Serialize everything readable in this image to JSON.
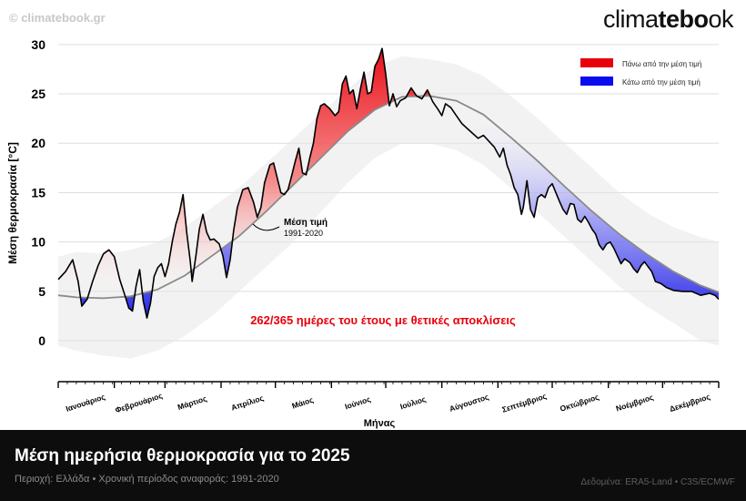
{
  "header": {
    "watermark": "© climatebook.gr",
    "brand_light": "clima",
    "brand_bold": "tebo",
    "brand_tail": "ok"
  },
  "footer": {
    "title": "Μέση ημερήσια θερμοκρασία για το 2025",
    "subtitle": "Περιοχή: Ελλάδα • Χρονική περίοδος αναφοράς: 1991-2020",
    "source": "Δεδομένα: ERA5-Land • C3S/ECMWF"
  },
  "chart_data": {
    "type": "area",
    "ylabel": "Μέση θερμοκρασία [°C]",
    "xlabel": "Μήνας",
    "ylim": [
      -3.5,
      31
    ],
    "xlim": [
      0,
      365
    ],
    "yticks": [
      0,
      5,
      10,
      15,
      20,
      25,
      30
    ],
    "grid": "horizontal",
    "categories": [
      "Ιανουάριος",
      "Φεβρουάριος",
      "Μάρτιος",
      "Απρίλιος",
      "Μάιος",
      "Ιούνιος",
      "Ιούλιος",
      "Αύγουστος",
      "Σεπτέμβριος",
      "Οκτώβριος",
      "Νοέμβριος",
      "Δεκέμβριος"
    ],
    "month_start_days": [
      0,
      31,
      59,
      90,
      120,
      151,
      181,
      212,
      243,
      273,
      304,
      334,
      365
    ],
    "legend": {
      "position": "top-right",
      "items": [
        {
          "label": "Πάνω από την μέση τιμή",
          "color": "#e8000b"
        },
        {
          "label": "Κάτω από την μέση τιμή",
          "color": "#0b0bf0"
        }
      ]
    },
    "mean_label": "Μέση τιμή",
    "mean_period": "1991-2020",
    "annotation": "262/365 ημέρες του έτους με θετικές αποκλίσεις",
    "colors": {
      "above": "#e8000b",
      "below": "#1414e6",
      "band": "#d9d9d9",
      "mean": "#8a8a8a"
    },
    "mean_1991_2020": [
      [
        0,
        4.6
      ],
      [
        10,
        4.4
      ],
      [
        25,
        4.3
      ],
      [
        40,
        4.5
      ],
      [
        55,
        5.2
      ],
      [
        70,
        6.6
      ],
      [
        85,
        8.6
      ],
      [
        100,
        10.6
      ],
      [
        115,
        13.1
      ],
      [
        130,
        15.8
      ],
      [
        145,
        18.5
      ],
      [
        160,
        21.2
      ],
      [
        175,
        23.4
      ],
      [
        190,
        24.7
      ],
      [
        205,
        24.8
      ],
      [
        220,
        24.3
      ],
      [
        235,
        22.9
      ],
      [
        250,
        20.6
      ],
      [
        265,
        18.2
      ],
      [
        280,
        15.6
      ],
      [
        295,
        13.1
      ],
      [
        310,
        10.8
      ],
      [
        325,
        8.8
      ],
      [
        340,
        7.0
      ],
      [
        355,
        5.6
      ],
      [
        365,
        4.9
      ]
    ],
    "upper_band": [
      [
        0,
        8.5
      ],
      [
        10,
        9.0
      ],
      [
        25,
        8.8
      ],
      [
        40,
        9.2
      ],
      [
        55,
        10.0
      ],
      [
        70,
        11.5
      ],
      [
        85,
        13.5
      ],
      [
        100,
        15.5
      ],
      [
        115,
        18.0
      ],
      [
        130,
        20.5
      ],
      [
        145,
        23.0
      ],
      [
        160,
        25.5
      ],
      [
        175,
        27.8
      ],
      [
        190,
        28.8
      ],
      [
        205,
        28.5
      ],
      [
        220,
        28.0
      ],
      [
        235,
        26.8
      ],
      [
        250,
        24.8
      ],
      [
        265,
        22.5
      ],
      [
        280,
        20.0
      ],
      [
        295,
        17.5
      ],
      [
        310,
        15.0
      ],
      [
        325,
        13.0
      ],
      [
        340,
        11.5
      ],
      [
        355,
        10.5
      ],
      [
        365,
        10.0
      ]
    ],
    "lower_band": [
      [
        0,
        -0.5
      ],
      [
        10,
        -1.0
      ],
      [
        25,
        -1.5
      ],
      [
        40,
        -1.8
      ],
      [
        55,
        -1.0
      ],
      [
        70,
        0.5
      ],
      [
        85,
        2.5
      ],
      [
        100,
        5.0
      ],
      [
        115,
        7.5
      ],
      [
        130,
        10.0
      ],
      [
        145,
        13.0
      ],
      [
        160,
        16.0
      ],
      [
        175,
        18.5
      ],
      [
        190,
        20.0
      ],
      [
        205,
        20.0
      ],
      [
        220,
        19.3
      ],
      [
        235,
        17.8
      ],
      [
        250,
        15.5
      ],
      [
        265,
        13.0
      ],
      [
        280,
        10.5
      ],
      [
        295,
        8.0
      ],
      [
        310,
        5.5
      ],
      [
        325,
        3.5
      ],
      [
        340,
        1.8
      ],
      [
        355,
        0.0
      ],
      [
        365,
        -0.5
      ]
    ],
    "daily_2025": [
      [
        0,
        6.2
      ],
      [
        4,
        7.0
      ],
      [
        8,
        8.2
      ],
      [
        11,
        6.0
      ],
      [
        13,
        3.5
      ],
      [
        16,
        4.2
      ],
      [
        19,
        6.0
      ],
      [
        22,
        7.6
      ],
      [
        25,
        8.8
      ],
      [
        28,
        9.2
      ],
      [
        31,
        8.5
      ],
      [
        34,
        6.2
      ],
      [
        37,
        4.5
      ],
      [
        39,
        3.3
      ],
      [
        41,
        3.0
      ],
      [
        43,
        5.5
      ],
      [
        45,
        7.2
      ],
      [
        47,
        4.0
      ],
      [
        49,
        2.3
      ],
      [
        51,
        3.8
      ],
      [
        53,
        6.5
      ],
      [
        55,
        7.4
      ],
      [
        57,
        7.8
      ],
      [
        59,
        6.5
      ],
      [
        61,
        7.8
      ],
      [
        63,
        10.0
      ],
      [
        65,
        11.8
      ],
      [
        67,
        13.0
      ],
      [
        69,
        14.8
      ],
      [
        71,
        11.0
      ],
      [
        73,
        8.0
      ],
      [
        74,
        6.0
      ],
      [
        76,
        8.5
      ],
      [
        78,
        11.3
      ],
      [
        80,
        12.8
      ],
      [
        82,
        11.0
      ],
      [
        84,
        10.2
      ],
      [
        86,
        10.3
      ],
      [
        89,
        9.8
      ],
      [
        91,
        8.6
      ],
      [
        93,
        6.4
      ],
      [
        95,
        8.2
      ],
      [
        97,
        11.2
      ],
      [
        99,
        13.5
      ],
      [
        102,
        15.3
      ],
      [
        105,
        15.5
      ],
      [
        108,
        14.0
      ],
      [
        110,
        12.5
      ],
      [
        112,
        13.5
      ],
      [
        114,
        16.0
      ],
      [
        117,
        17.8
      ],
      [
        119,
        18.0
      ],
      [
        121,
        16.5
      ],
      [
        123,
        15.0
      ],
      [
        125,
        14.8
      ],
      [
        127,
        15.3
      ],
      [
        129,
        16.7
      ],
      [
        131,
        18.2
      ],
      [
        133,
        19.5
      ],
      [
        135,
        17.0
      ],
      [
        137,
        16.8
      ],
      [
        139,
        18.5
      ],
      [
        141,
        20.0
      ],
      [
        143,
        22.5
      ],
      [
        145,
        23.8
      ],
      [
        147,
        24.0
      ],
      [
        150,
        23.5
      ],
      [
        153,
        22.8
      ],
      [
        155,
        23.2
      ],
      [
        157,
        26.0
      ],
      [
        159,
        26.8
      ],
      [
        161,
        25.0
      ],
      [
        163,
        25.4
      ],
      [
        165,
        23.5
      ],
      [
        167,
        25.5
      ],
      [
        169,
        27.2
      ],
      [
        171,
        25.0
      ],
      [
        173,
        25.2
      ],
      [
        175,
        27.8
      ],
      [
        177,
        28.5
      ],
      [
        179,
        29.6
      ],
      [
        181,
        27.0
      ],
      [
        183,
        23.8
      ],
      [
        185,
        25.0
      ],
      [
        187,
        23.7
      ],
      [
        189,
        24.3
      ],
      [
        192,
        24.6
      ],
      [
        195,
        25.6
      ],
      [
        198,
        24.8
      ],
      [
        201,
        24.5
      ],
      [
        204,
        25.4
      ],
      [
        207,
        24.2
      ],
      [
        210,
        23.4
      ],
      [
        212,
        22.8
      ],
      [
        214,
        24.0
      ],
      [
        217,
        23.6
      ],
      [
        220,
        22.8
      ],
      [
        223,
        22.0
      ],
      [
        226,
        21.5
      ],
      [
        229,
        21.0
      ],
      [
        232,
        20.5
      ],
      [
        235,
        20.8
      ],
      [
        238,
        20.2
      ],
      [
        241,
        19.6
      ],
      [
        244,
        18.6
      ],
      [
        246,
        19.5
      ],
      [
        248,
        17.8
      ],
      [
        250,
        16.8
      ],
      [
        252,
        15.5
      ],
      [
        254,
        14.8
      ],
      [
        256,
        12.8
      ],
      [
        257,
        13.5
      ],
      [
        259,
        16.2
      ],
      [
        261,
        13.3
      ],
      [
        263,
        12.5
      ],
      [
        265,
        14.5
      ],
      [
        267,
        14.8
      ],
      [
        269,
        14.5
      ],
      [
        271,
        15.5
      ],
      [
        273,
        15.9
      ],
      [
        275,
        15.0
      ],
      [
        277,
        14.1
      ],
      [
        279,
        13.3
      ],
      [
        281,
        12.8
      ],
      [
        283,
        13.9
      ],
      [
        285,
        13.8
      ],
      [
        287,
        12.3
      ],
      [
        289,
        12.0
      ],
      [
        291,
        12.6
      ],
      [
        293,
        12.0
      ],
      [
        295,
        11.3
      ],
      [
        297,
        10.8
      ],
      [
        299,
        9.7
      ],
      [
        301,
        9.2
      ],
      [
        303,
        9.8
      ],
      [
        305,
        10.0
      ],
      [
        307,
        9.4
      ],
      [
        309,
        8.6
      ],
      [
        311,
        7.8
      ],
      [
        313,
        8.3
      ],
      [
        316,
        7.9
      ],
      [
        318,
        7.3
      ],
      [
        320,
        6.9
      ],
      [
        322,
        7.6
      ],
      [
        324,
        8.0
      ],
      [
        326,
        7.5
      ],
      [
        328,
        7.0
      ],
      [
        330,
        6.0
      ],
      [
        333,
        5.8
      ],
      [
        336,
        5.4
      ],
      [
        340,
        5.1
      ],
      [
        345,
        5.0
      ],
      [
        350,
        5.0
      ],
      [
        355,
        4.6
      ],
      [
        360,
        4.8
      ],
      [
        363,
        4.6
      ],
      [
        365,
        4.2
      ]
    ]
  }
}
